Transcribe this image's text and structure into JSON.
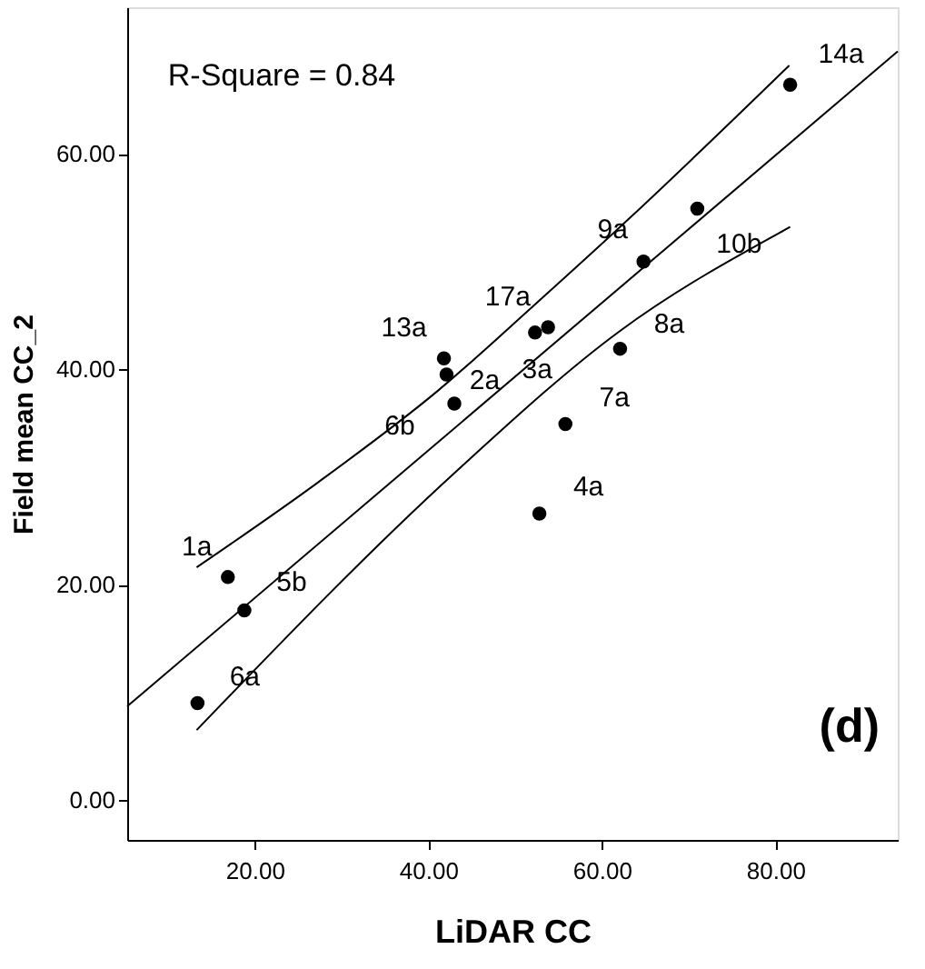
{
  "chart_data": {
    "type": "scatter",
    "xlabel": "LiDAR CC",
    "ylabel": "Field mean CC_2",
    "xlim": [
      5.3,
      94.1
    ],
    "ylim": [
      -3.7,
      73.6
    ],
    "xticks": [
      {
        "value": 20,
        "label": "20.00"
      },
      {
        "value": 40,
        "label": "40.00"
      },
      {
        "value": 60,
        "label": "60.00"
      },
      {
        "value": 80,
        "label": "80.00"
      }
    ],
    "yticks": [
      {
        "value": 0,
        "label": "0.00"
      },
      {
        "value": 20,
        "label": "20.00"
      },
      {
        "value": 40,
        "label": "40.00"
      },
      {
        "value": 60,
        "label": "60.00"
      }
    ],
    "grid": false,
    "series": [
      {
        "color": "#000000",
        "marker": "circle",
        "x": [
          81.7,
          71.0,
          64.8,
          52.3,
          53.8,
          62.1,
          41.8,
          42.1,
          43.0,
          55.8,
          52.8,
          16.9,
          18.8,
          13.4
        ],
        "values": [
          66.4,
          54.9,
          50.0,
          43.4,
          43.9,
          41.9,
          41.0,
          39.5,
          36.8,
          34.9,
          26.6,
          20.7,
          17.6,
          9.0
        ]
      },
      {
        "type": "line",
        "color": "#000000",
        "marker": "none",
        "line_style": "solid",
        "x": [
          5.3,
          94.1
        ],
        "values": [
          8.7,
          69.5
        ]
      },
      {
        "type": "line",
        "color": "#000000",
        "marker": "none",
        "line_style": "solid",
        "x": [
          13.3,
          27.3,
          41.1,
          52.0,
          63.3,
          81.6
        ],
        "values": [
          21.6,
          29.5,
          38.0,
          45.8,
          54.1,
          68.2
        ]
      },
      {
        "type": "line",
        "color": "#000000",
        "marker": "none",
        "line_style": "solid",
        "x": [
          13.3,
          43.2,
          62.0,
          81.7
        ],
        "values": [
          6.5,
          30.5,
          43.5,
          53.2
        ]
      }
    ],
    "annotations": [
      "R-Square = 0.84",
      "(d)",
      {
        "text": "14a",
        "x": 81.7,
        "y": 66.4
      },
      {
        "text": "10b",
        "x": 71.0,
        "y": 54.9
      },
      {
        "text": "9a",
        "x": 64.8,
        "y": 50.0
      },
      {
        "text": "17a",
        "x": 52.3,
        "y": 43.4
      },
      {
        "text": "3a",
        "x": 53.8,
        "y": 43.9
      },
      {
        "text": "8a",
        "x": 62.1,
        "y": 41.9
      },
      {
        "text": "13a",
        "x": 41.8,
        "y": 41.0
      },
      {
        "text": "2a",
        "x": 42.1,
        "y": 39.5
      },
      {
        "text": "6b",
        "x": 43.0,
        "y": 36.8
      },
      {
        "text": "7a",
        "x": 55.8,
        "y": 34.9
      },
      {
        "text": "4a",
        "x": 52.8,
        "y": 26.6
      },
      {
        "text": "1a",
        "x": 16.9,
        "y": 20.7
      },
      {
        "text": "5b",
        "x": 18.8,
        "y": 17.6
      },
      {
        "text": "6a",
        "x": 13.4,
        "y": 9.0
      }
    ]
  }
}
